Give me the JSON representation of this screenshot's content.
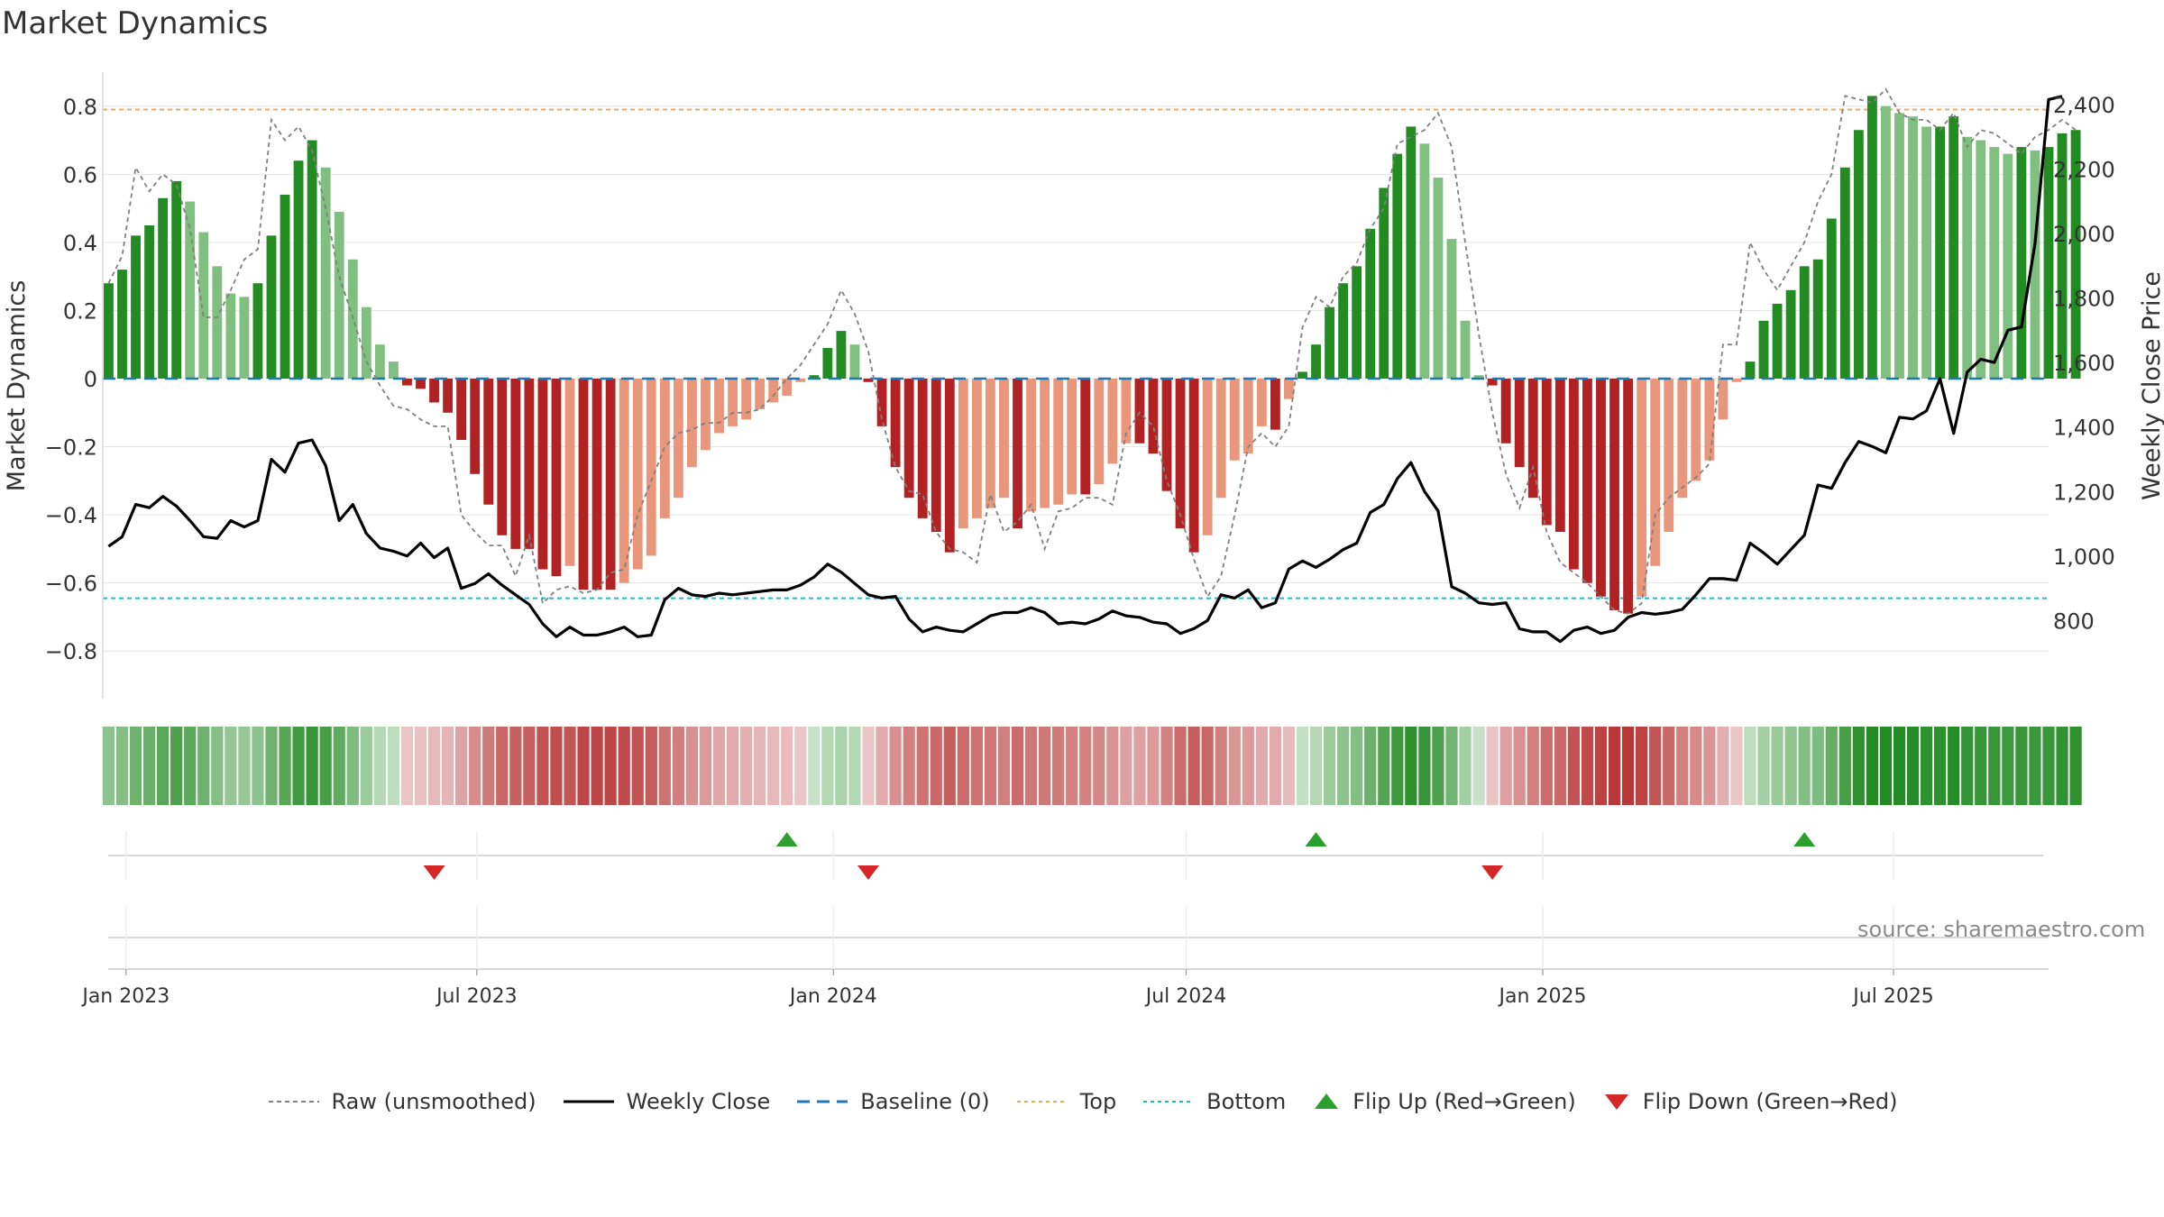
{
  "title": "Market Dynamics",
  "source": "source: sharemaestro.com",
  "colors": {
    "strong_green": "#228b22",
    "light_green": "#7fbf7f",
    "strong_red": "#b22222",
    "light_red": "#e9967a",
    "top_line": "#f4a460",
    "bottom_line": "#17becf",
    "baseline": "#1f77b4",
    "close_line": "#000000",
    "raw_line": "#808080",
    "flip_up": "#2ca02c",
    "flip_down": "#d62728"
  },
  "chart_data": {
    "type": "bar",
    "ylabel": "Market Dynamics",
    "y2label": "Weekly Close Price",
    "ylim": [
      -0.9,
      0.9
    ],
    "y2lim": [
      600,
      2500
    ],
    "yticks": [
      "0.8",
      "0.6",
      "0.4",
      "0.2",
      "0",
      "−0.2",
      "−0.4",
      "−0.6",
      "−0.8"
    ],
    "yticks_values": [
      0.8,
      0.6,
      0.4,
      0.2,
      0,
      -0.2,
      -0.4,
      -0.6,
      -0.8
    ],
    "y2ticks": [
      "2,400",
      "2,200",
      "2,000",
      "1,800",
      "1,600",
      "1,400",
      "1,200",
      "1,000",
      "800"
    ],
    "y2ticks_values": [
      2400,
      2200,
      2000,
      1800,
      1600,
      1400,
      1200,
      1000,
      800
    ],
    "xticks": [
      "Jan 2023",
      "Jul 2023",
      "Jan 2024",
      "Jul 2024",
      "Jan 2025",
      "Jul 2025"
    ],
    "xticks_dates": [
      "2023-01-01",
      "2023-07-01",
      "2024-01-01",
      "2024-07-01",
      "2025-01-01",
      "2025-07-01"
    ],
    "x_start": "2022-12-20",
    "x_end": "2025-09-19",
    "week_start": "2022-12-23",
    "top": 0.79,
    "bottom": -0.645,
    "baseline": 0,
    "dynamics": [
      0.28,
      0.32,
      0.42,
      0.45,
      0.53,
      0.58,
      0.52,
      0.43,
      0.33,
      0.25,
      0.24,
      0.28,
      0.42,
      0.54,
      0.64,
      0.7,
      0.62,
      0.49,
      0.35,
      0.21,
      0.1,
      0.05,
      -0.02,
      -0.03,
      -0.07,
      -0.1,
      -0.18,
      -0.28,
      -0.37,
      -0.46,
      -0.5,
      -0.5,
      -0.56,
      -0.58,
      -0.55,
      -0.62,
      -0.62,
      -0.62,
      -0.6,
      -0.56,
      -0.52,
      -0.41,
      -0.35,
      -0.26,
      -0.21,
      -0.16,
      -0.14,
      -0.12,
      -0.09,
      -0.07,
      -0.05,
      -0.01,
      0.01,
      0.09,
      0.14,
      0.1,
      -0.01,
      -0.14,
      -0.26,
      -0.35,
      -0.41,
      -0.45,
      -0.51,
      -0.44,
      -0.41,
      -0.38,
      -0.35,
      -0.44,
      -0.39,
      -0.38,
      -0.37,
      -0.34,
      -0.34,
      -0.31,
      -0.25,
      -0.19,
      -0.19,
      -0.22,
      -0.33,
      -0.44,
      -0.51,
      -0.46,
      -0.35,
      -0.24,
      -0.22,
      -0.14,
      -0.15,
      -0.06,
      0.02,
      0.1,
      0.21,
      0.28,
      0.33,
      0.44,
      0.56,
      0.66,
      0.74,
      0.69,
      0.59,
      0.41,
      0.17,
      0.01,
      -0.02,
      -0.19,
      -0.26,
      -0.35,
      -0.43,
      -0.45,
      -0.56,
      -0.6,
      -0.64,
      -0.68,
      -0.69,
      -0.64,
      -0.55,
      -0.45,
      -0.35,
      -0.3,
      -0.24,
      -0.12,
      -0.01,
      0.05,
      0.17,
      0.22,
      0.26,
      0.33,
      0.35,
      0.47,
      0.62,
      0.73,
      0.83,
      0.8,
      0.78,
      0.77,
      0.74,
      0.74,
      0.77,
      0.71,
      0.7,
      0.68,
      0.66,
      0.68,
      0.67,
      0.68,
      0.72,
      0.73
    ],
    "raw": [
      0.28,
      0.36,
      0.62,
      0.55,
      0.6,
      0.57,
      0.44,
      0.18,
      0.18,
      0.26,
      0.35,
      0.38,
      0.76,
      0.7,
      0.74,
      0.67,
      0.5,
      0.3,
      0.18,
      0.05,
      -0.02,
      -0.08,
      -0.09,
      -0.12,
      -0.14,
      -0.14,
      -0.4,
      -0.45,
      -0.49,
      -0.49,
      -0.58,
      -0.46,
      -0.66,
      -0.62,
      -0.61,
      -0.63,
      -0.62,
      -0.57,
      -0.56,
      -0.4,
      -0.3,
      -0.2,
      -0.16,
      -0.15,
      -0.13,
      -0.13,
      -0.1,
      -0.1,
      -0.09,
      -0.05,
      0.0,
      0.04,
      0.1,
      0.16,
      0.26,
      0.19,
      0.08,
      -0.12,
      -0.26,
      -0.33,
      -0.34,
      -0.45,
      -0.5,
      -0.51,
      -0.54,
      -0.34,
      -0.45,
      -0.42,
      -0.37,
      -0.5,
      -0.39,
      -0.38,
      -0.35,
      -0.35,
      -0.37,
      -0.16,
      -0.1,
      -0.14,
      -0.3,
      -0.4,
      -0.53,
      -0.64,
      -0.58,
      -0.4,
      -0.2,
      -0.16,
      -0.2,
      -0.14,
      0.15,
      0.24,
      0.21,
      0.3,
      0.34,
      0.44,
      0.5,
      0.69,
      0.71,
      0.73,
      0.78,
      0.68,
      0.4,
      0.13,
      -0.1,
      -0.28,
      -0.38,
      -0.26,
      -0.45,
      -0.54,
      -0.57,
      -0.6,
      -0.64,
      -0.68,
      -0.69,
      -0.66,
      -0.4,
      -0.35,
      -0.32,
      -0.29,
      -0.25,
      0.1,
      0.1,
      0.4,
      0.32,
      0.26,
      0.33,
      0.4,
      0.52,
      0.6,
      0.83,
      0.82,
      0.81,
      0.85,
      0.78,
      0.76,
      0.76,
      0.73,
      0.78,
      0.68,
      0.73,
      0.72,
      0.69,
      0.66,
      0.71,
      0.73,
      0.76,
      0.73
    ],
    "weekly_close": [
      1030,
      1060,
      1160,
      1150,
      1185,
      1155,
      1110,
      1060,
      1055,
      1110,
      1090,
      1110,
      1300,
      1260,
      1350,
      1360,
      1280,
      1110,
      1160,
      1070,
      1025,
      1015,
      1000,
      1040,
      995,
      1025,
      900,
      915,
      945,
      910,
      880,
      850,
      790,
      750,
      780,
      755,
      755,
      765,
      780,
      750,
      755,
      865,
      900,
      880,
      875,
      885,
      880,
      885,
      890,
      895,
      895,
      910,
      935,
      975,
      950,
      915,
      880,
      870,
      875,
      805,
      765,
      780,
      770,
      765,
      790,
      815,
      825,
      825,
      840,
      825,
      790,
      795,
      790,
      805,
      830,
      815,
      810,
      795,
      790,
      760,
      775,
      800,
      880,
      870,
      895,
      840,
      855,
      960,
      985,
      965,
      990,
      1020,
      1040,
      1135,
      1160,
      1240,
      1290,
      1200,
      1140,
      905,
      885,
      855,
      850,
      855,
      775,
      765,
      765,
      735,
      770,
      780,
      760,
      770,
      810,
      825,
      820,
      825,
      835,
      880,
      930,
      930,
      925,
      1040,
      1010,
      975,
      1020,
      1065,
      1220,
      1210,
      1290,
      1355,
      1340,
      1320,
      1430,
      1425,
      1450,
      1550,
      1380,
      1570,
      1610,
      1600,
      1700,
      1710,
      1970,
      2415,
      2425
    ],
    "flip_up_dates": [
      "2023-12-08",
      "2024-09-06",
      "2025-05-16"
    ],
    "flip_down_dates": [
      "2023-06-09",
      "2024-01-19",
      "2024-12-06"
    ]
  },
  "legend": {
    "raw": "Raw (unsmoothed)",
    "close": "Weekly Close",
    "baseline": "Baseline (0)",
    "top": "Top",
    "bottom": "Bottom",
    "flip_up": "Flip Up (Red→Green)",
    "flip_down": "Flip Down (Green→Red)"
  }
}
